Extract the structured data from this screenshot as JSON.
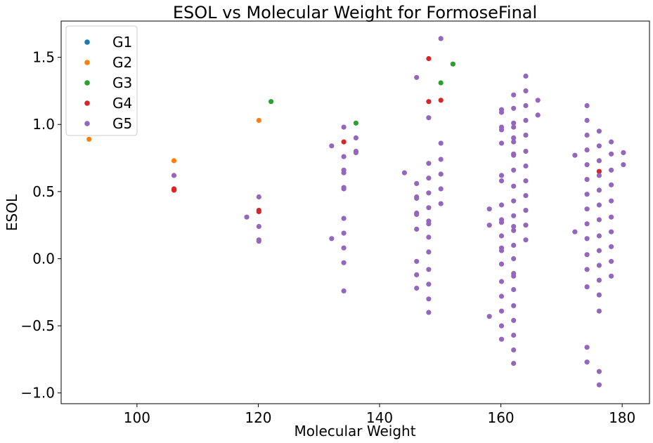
{
  "chart_data": {
    "type": "scatter",
    "title": "ESOL vs Molecular Weight for FormoseFinal",
    "xlabel": "Molecular Weight",
    "ylabel": "ESOL",
    "xlim": [
      87.5,
      184.5
    ],
    "ylim": [
      -1.08,
      1.77
    ],
    "xticks": [
      100,
      120,
      140,
      160,
      180
    ],
    "yticks": [
      -1.0,
      -0.5,
      0.0,
      0.5,
      1.0,
      1.5
    ],
    "xtick_labels": [
      "100",
      "120",
      "140",
      "160",
      "180"
    ],
    "ytick_labels": [
      "−1.0",
      "−0.5",
      "0.0",
      "0.5",
      "1.0",
      "1.5"
    ],
    "grid": false,
    "legend_position": "top-left",
    "series": [
      {
        "name": "G1",
        "color": "#1f77b4",
        "points": []
      },
      {
        "name": "G2",
        "color": "#ff7f0e",
        "points": [
          [
            92.1,
            0.89
          ],
          [
            106.1,
            0.73
          ],
          [
            120.1,
            1.03
          ]
        ]
      },
      {
        "name": "G3",
        "color": "#2ca02c",
        "points": [
          [
            122.1,
            1.17
          ],
          [
            136.1,
            1.01
          ],
          [
            150.1,
            1.31
          ],
          [
            152.1,
            1.45
          ]
        ]
      },
      {
        "name": "G4",
        "color": "#d62728",
        "points": [
          [
            106.1,
            0.51
          ],
          [
            106.1,
            0.52
          ],
          [
            120.1,
            0.35
          ],
          [
            120.1,
            0.36
          ],
          [
            134.1,
            0.87
          ],
          [
            148.1,
            1.49
          ],
          [
            148.1,
            1.17
          ],
          [
            150.1,
            1.18
          ],
          [
            176.2,
            0.65
          ]
        ]
      },
      {
        "name": "G5",
        "color": "#9467bd",
        "points": [
          [
            106.1,
            0.62
          ],
          [
            118.1,
            0.31
          ],
          [
            120.1,
            0.46
          ],
          [
            120.1,
            0.24
          ],
          [
            120.1,
            0.14
          ],
          [
            120.1,
            0.13
          ],
          [
            132.1,
            0.84
          ],
          [
            132.1,
            0.15
          ],
          [
            134.1,
            0.98
          ],
          [
            134.1,
            0.76
          ],
          [
            134.1,
            0.66
          ],
          [
            134.1,
            0.64
          ],
          [
            134.1,
            0.53
          ],
          [
            134.1,
            0.52
          ],
          [
            134.1,
            0.3
          ],
          [
            134.1,
            0.19
          ],
          [
            134.1,
            0.08
          ],
          [
            134.1,
            -0.03
          ],
          [
            134.1,
            -0.24
          ],
          [
            136.1,
            0.9
          ],
          [
            136.1,
            0.8
          ],
          [
            136.1,
            0.79
          ],
          [
            144.1,
            0.64
          ],
          [
            146.1,
            1.35
          ],
          [
            146.1,
            0.56
          ],
          [
            146.1,
            0.46
          ],
          [
            146.1,
            0.45
          ],
          [
            146.1,
            0.34
          ],
          [
            146.1,
            0.33
          ],
          [
            146.1,
            0.22
          ],
          [
            146.1,
            -0.02
          ],
          [
            146.1,
            -0.12
          ],
          [
            146.1,
            -0.22
          ],
          [
            148.1,
            1.05
          ],
          [
            148.1,
            0.71
          ],
          [
            148.1,
            0.6
          ],
          [
            148.1,
            0.49
          ],
          [
            148.1,
            0.38
          ],
          [
            148.1,
            0.28
          ],
          [
            148.1,
            0.26
          ],
          [
            148.1,
            0.16
          ],
          [
            148.1,
            0.05
          ],
          [
            148.1,
            -0.08
          ],
          [
            148.1,
            -0.19
          ],
          [
            148.1,
            -0.3
          ],
          [
            148.1,
            -0.4
          ],
          [
            150.1,
            1.64
          ],
          [
            150.1,
            0.86
          ],
          [
            150.1,
            0.74
          ],
          [
            150.1,
            0.63
          ],
          [
            150.1,
            0.52
          ],
          [
            150.1,
            0.41
          ],
          [
            158.1,
            0.37
          ],
          [
            158.1,
            0.25
          ],
          [
            158.1,
            -0.43
          ],
          [
            160.1,
            1.11
          ],
          [
            160.1,
            1.09
          ],
          [
            160.1,
            0.98
          ],
          [
            160.1,
            0.96
          ],
          [
            160.1,
            0.86
          ],
          [
            160.1,
            0.62
          ],
          [
            160.1,
            0.58
          ],
          [
            160.1,
            0.4
          ],
          [
            160.1,
            0.29
          ],
          [
            160.1,
            0.27
          ],
          [
            160.1,
            0.17
          ],
          [
            160.1,
            0.08
          ],
          [
            160.1,
            0.06
          ],
          [
            160.1,
            -0.04
          ],
          [
            160.1,
            -0.17
          ],
          [
            160.1,
            -0.28
          ],
          [
            160.1,
            -0.39
          ],
          [
            160.1,
            -0.5
          ],
          [
            160.1,
            -0.6
          ],
          [
            162.1,
            1.22
          ],
          [
            162.1,
            1.12
          ],
          [
            162.1,
            1.01
          ],
          [
            162.1,
            0.98
          ],
          [
            162.1,
            0.9
          ],
          [
            162.1,
            0.87
          ],
          [
            162.1,
            0.78
          ],
          [
            162.1,
            0.77
          ],
          [
            162.1,
            0.66
          ],
          [
            162.1,
            0.54
          ],
          [
            162.1,
            0.43
          ],
          [
            162.1,
            0.32
          ],
          [
            162.1,
            0.24
          ],
          [
            162.1,
            0.21
          ],
          [
            162.1,
            0.1
          ],
          [
            162.1,
            0.0
          ],
          [
            162.1,
            -0.11
          ],
          [
            162.1,
            -0.13
          ],
          [
            162.1,
            -0.23
          ],
          [
            162.1,
            -0.35
          ],
          [
            162.1,
            -0.46
          ],
          [
            162.1,
            -0.57
          ],
          [
            162.1,
            -0.68
          ],
          [
            162.1,
            -0.78
          ],
          [
            164.1,
            1.36
          ],
          [
            164.1,
            1.25
          ],
          [
            164.1,
            1.14
          ],
          [
            164.1,
            1.03
          ],
          [
            164.1,
            0.92
          ],
          [
            164.1,
            0.8
          ],
          [
            164.1,
            0.69
          ],
          [
            164.1,
            0.58
          ],
          [
            164.1,
            0.47
          ],
          [
            164.1,
            0.36
          ],
          [
            164.1,
            0.25
          ],
          [
            164.1,
            0.14
          ],
          [
            166.1,
            1.18
          ],
          [
            166.1,
            1.07
          ],
          [
            172.2,
            0.77
          ],
          [
            172.2,
            0.2
          ],
          [
            174.2,
            1.14
          ],
          [
            174.2,
            1.03
          ],
          [
            174.2,
            0.92
          ],
          [
            174.2,
            0.81
          ],
          [
            174.2,
            0.7
          ],
          [
            174.2,
            0.59
          ],
          [
            174.2,
            0.48
          ],
          [
            174.2,
            0.37
          ],
          [
            174.2,
            0.26
          ],
          [
            174.2,
            0.15
          ],
          [
            174.2,
            0.03
          ],
          [
            174.2,
            -0.08
          ],
          [
            174.2,
            -0.21
          ],
          [
            174.2,
            -0.66
          ],
          [
            174.2,
            -0.77
          ],
          [
            176.2,
            0.95
          ],
          [
            176.2,
            0.84
          ],
          [
            176.2,
            0.73
          ],
          [
            176.2,
            0.62
          ],
          [
            176.2,
            0.51
          ],
          [
            176.2,
            0.4
          ],
          [
            176.2,
            0.29
          ],
          [
            176.2,
            0.17
          ],
          [
            176.2,
            0.06
          ],
          [
            176.2,
            -0.05
          ],
          [
            176.2,
            -0.16
          ],
          [
            176.2,
            -0.27
          ],
          [
            176.2,
            -0.39
          ],
          [
            176.2,
            -0.84
          ],
          [
            176.2,
            -0.94
          ],
          [
            178.2,
            0.87
          ],
          [
            178.2,
            0.78
          ],
          [
            178.2,
            0.66
          ],
          [
            178.2,
            0.55
          ],
          [
            178.2,
            0.43
          ],
          [
            178.2,
            0.31
          ],
          [
            178.2,
            0.2
          ],
          [
            178.2,
            0.09
          ],
          [
            178.2,
            -0.02
          ],
          [
            178.2,
            -0.13
          ],
          [
            180.2,
            0.79
          ],
          [
            180.2,
            0.7
          ]
        ]
      }
    ]
  }
}
